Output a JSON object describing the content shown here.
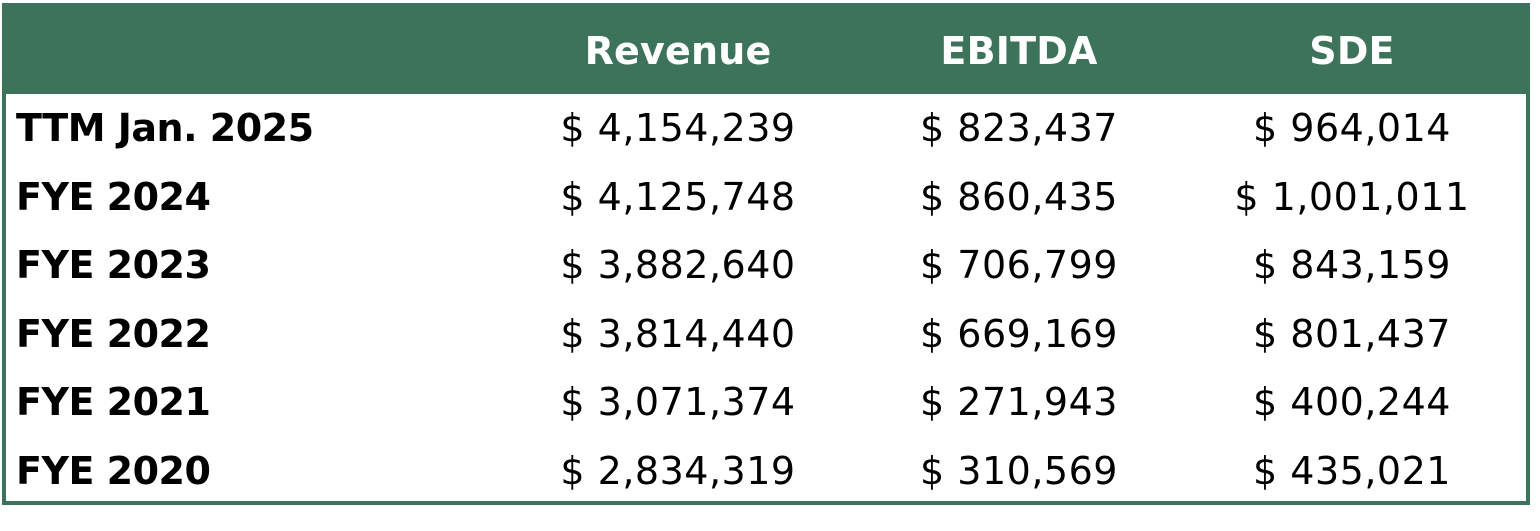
{
  "chart_data": {
    "type": "table",
    "columns": [
      "",
      "Revenue",
      "EBITDA",
      "SDE"
    ],
    "rows": [
      {
        "label": "TTM Jan. 2025",
        "revenue": "$ 4,154,239",
        "ebitda": "$ 823,437",
        "sde": "$ 964,014"
      },
      {
        "label": "FYE 2024",
        "revenue": "$ 4,125,748",
        "ebitda": "$ 860,435",
        "sde": "$ 1,001,011"
      },
      {
        "label": "FYE 2023",
        "revenue": "$ 3,882,640",
        "ebitda": "$ 706,799",
        "sde": "$ 843,159"
      },
      {
        "label": "FYE 2022",
        "revenue": "$ 3,814,440",
        "ebitda": "$ 669,169",
        "sde": "$ 801,437"
      },
      {
        "label": "FYE 2021",
        "revenue": "$ 3,071,374",
        "ebitda": "$ 271,943",
        "sde": "$ 400,244"
      },
      {
        "label": "FYE 2020",
        "revenue": "$ 2,834,319",
        "ebitda": "$ 310,569",
        "sde": "$ 435,021"
      }
    ],
    "header_color": "#3c735a",
    "header_text_color": "#ffffff",
    "border_color": "#3c735a"
  }
}
